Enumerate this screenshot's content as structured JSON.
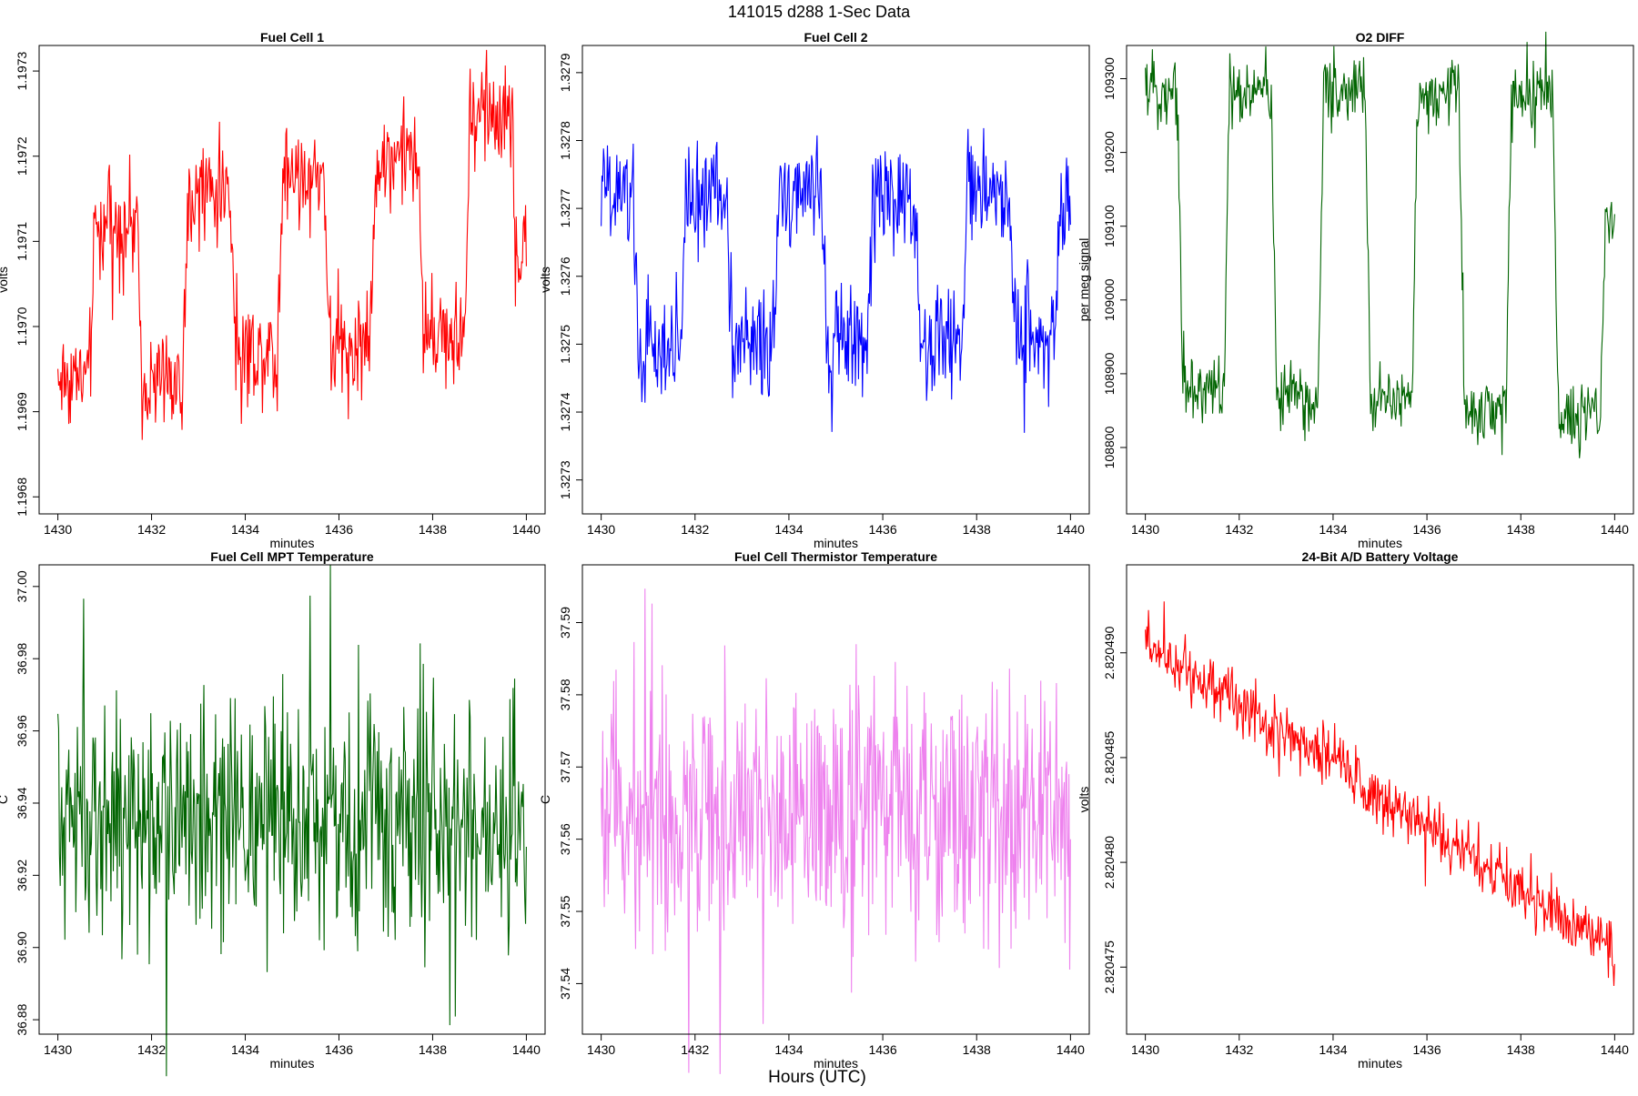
{
  "figure_title": "141015   d288   1-Sec Data",
  "common_xlabel": "Hours (UTC)",
  "chart_data": [
    {
      "type": "line",
      "title": "Fuel Cell 1",
      "xlabel": "minutes",
      "ylabel": "volts",
      "color": "#ff0000",
      "xlim": [
        1429.6,
        1440.4
      ],
      "ylim": [
        1.19678,
        1.19733
      ],
      "xticks": [
        1430,
        1432,
        1434,
        1436,
        1438,
        1440
      ],
      "xtick_labels": [
        "1430",
        "1432",
        "1434",
        "1436",
        "1438",
        "1440"
      ],
      "yticks": [
        1.1968,
        1.1969,
        1.197,
        1.1971,
        1.1972,
        1.1973
      ],
      "ytick_labels": [
        "1.1968",
        "1.1969",
        "1.1970",
        "1.1971",
        "1.1972",
        "1.1973"
      ],
      "series": [
        {
          "name": "Fuel Cell 1",
          "trend": [
            1.19696,
            1.19697
          ],
          "period": 2.0,
          "phase": 0.8,
          "amplitude": 0.000115,
          "noise": 3e-05,
          "spike": 6e-05,
          "levels": [
            1.19694,
            1.19712,
            1.19694,
            1.19716,
            1.19697,
            1.19718,
            1.19698,
            1.1972,
            1.19699,
            1.19725,
            1.19708
          ]
        }
      ]
    },
    {
      "type": "line",
      "title": "Fuel Cell 2",
      "xlabel": "minutes",
      "ylabel": "volts",
      "color": "#0000ff",
      "xlim": [
        1429.6,
        1440.4
      ],
      "ylim": [
        1.32725,
        1.32794
      ],
      "xticks": [
        1430,
        1432,
        1434,
        1436,
        1438,
        1440
      ],
      "xtick_labels": [
        "1430",
        "1432",
        "1434",
        "1436",
        "1438",
        "1440"
      ],
      "yticks": [
        1.3273,
        1.3274,
        1.3275,
        1.3276,
        1.3277,
        1.3278,
        1.3279
      ],
      "ytick_labels": [
        "1.3273",
        "1.3274",
        "1.3275",
        "1.3276",
        "1.3277",
        "1.3278",
        "1.3279"
      ],
      "series": [
        {
          "name": "Fuel Cell 2",
          "period": 2.0,
          "phase": 0.8,
          "noise": 4e-05,
          "spike": 8e-05,
          "levels": [
            1.32772,
            1.32748,
            1.32772,
            1.3275,
            1.32772,
            1.3275,
            1.32772,
            1.3275,
            1.32772,
            1.32752,
            1.3277
          ]
        }
      ]
    },
    {
      "type": "line",
      "title": "O2 DIFF",
      "xlabel": "minutes",
      "ylabel": "per meg signal",
      "color": "#006400",
      "xlim": [
        1429.6,
        1440.4
      ],
      "ylim": [
        108710,
        109345
      ],
      "xticks": [
        1430,
        1432,
        1434,
        1436,
        1438,
        1440
      ],
      "xtick_labels": [
        "1430",
        "1432",
        "1434",
        "1436",
        "1438",
        "1440"
      ],
      "yticks": [
        108800,
        108900,
        109000,
        109100,
        109200,
        109300
      ],
      "ytick_labels": [
        "108800",
        "108900",
        "109000",
        "109100",
        "109200",
        "109300"
      ],
      "series": [
        {
          "name": "O2 DIFF",
          "period": 2.0,
          "phase": 0.8,
          "noise": 22,
          "spike": 50,
          "levels": [
            109285,
            108880,
            109285,
            108870,
            109285,
            108860,
            109280,
            108850,
            109280,
            108840,
            109100
          ]
        }
      ]
    },
    {
      "type": "line",
      "title": "Fuel Cell MPT Temperature",
      "xlabel": "minutes",
      "ylabel": "C",
      "color": "#006400",
      "xlim": [
        1429.6,
        1440.4
      ],
      "ylim": [
        36.876,
        37.006
      ],
      "xticks": [
        1430,
        1432,
        1434,
        1436,
        1438,
        1440
      ],
      "xtick_labels": [
        "1430",
        "1432",
        "1434",
        "1436",
        "1438",
        "1440"
      ],
      "yticks": [
        36.88,
        36.9,
        36.92,
        36.94,
        36.96,
        36.98,
        37.0
      ],
      "ytick_labels": [
        "36.88",
        "36.90",
        "36.92",
        "36.94",
        "36.96",
        "36.98",
        "37.00"
      ],
      "series": [
        {
          "name": "MPT Temperature",
          "mean": 36.935,
          "noise": 0.016,
          "spike": 0.045
        }
      ]
    },
    {
      "type": "line",
      "title": "Fuel Cell Thermistor Temperature",
      "xlabel": "minutes",
      "ylabel": "C",
      "color": "#ee82ee",
      "xlim": [
        1429.6,
        1440.4
      ],
      "ylim": [
        37.533,
        37.598
      ],
      "xticks": [
        1430,
        1432,
        1434,
        1436,
        1438,
        1440
      ],
      "xtick_labels": [
        "1430",
        "1432",
        "1434",
        "1436",
        "1438",
        "1440"
      ],
      "yticks": [
        37.54,
        37.55,
        37.56,
        37.57,
        37.58,
        37.59
      ],
      "ytick_labels": [
        "37.54",
        "37.55",
        "37.56",
        "37.57",
        "37.58",
        "37.59"
      ],
      "series": [
        {
          "name": "Thermistor Temperature",
          "mean": 37.564,
          "noise": 0.0085,
          "spike": 0.025
        }
      ]
    },
    {
      "type": "line",
      "title": "24-Bit A/D Battery Voltage",
      "xlabel": "minutes",
      "ylabel": "volts",
      "color": "#ff0000",
      "xlim": [
        1429.6,
        1440.4
      ],
      "ylim": [
        2.8204718,
        2.8204942
      ],
      "xticks": [
        1430,
        1432,
        1434,
        1436,
        1438,
        1440
      ],
      "xtick_labels": [
        "1430",
        "1432",
        "1434",
        "1436",
        "1438",
        "1440"
      ],
      "yticks": [
        2.820475,
        2.82048,
        2.820485,
        2.82049
      ],
      "ytick_labels": [
        "2.820475",
        "2.820480",
        "2.820485",
        "2.820490"
      ],
      "series": [
        {
          "name": "Battery Voltage",
          "trend": [
            2.8204905,
            2.8204758
          ],
          "noise": 7e-07,
          "spike": 1.6e-06
        }
      ]
    }
  ]
}
